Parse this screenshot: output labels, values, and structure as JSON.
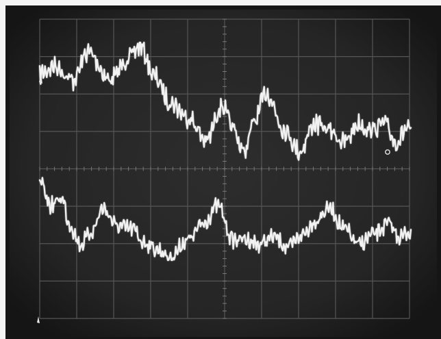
{
  "scene": {
    "subject": "oscilloscope-screen-photo",
    "colors": {
      "border": "#f4f4f4",
      "screen_outer": "#151515",
      "screen_inner": "#2d2d2d",
      "grid": "#565656",
      "trace": "#f2f2f2"
    },
    "graticule": {
      "divisions_x": 10,
      "divisions_y": 8
    },
    "traces": [
      {
        "name": "upper-trace",
        "points": [
          [
            0.0,
            0.2
          ],
          [
            0.04,
            0.15
          ],
          [
            0.09,
            0.24
          ],
          [
            0.13,
            0.06
          ],
          [
            0.19,
            0.24
          ],
          [
            0.24,
            0.1
          ],
          [
            0.27,
            0.02
          ],
          [
            0.31,
            0.22
          ],
          [
            0.35,
            0.38
          ],
          [
            0.4,
            0.48
          ],
          [
            0.45,
            0.63
          ],
          [
            0.49,
            0.4
          ],
          [
            0.52,
            0.55
          ],
          [
            0.55,
            0.7
          ],
          [
            0.58,
            0.5
          ],
          [
            0.61,
            0.32
          ],
          [
            0.66,
            0.56
          ],
          [
            0.7,
            0.7
          ],
          [
            0.74,
            0.52
          ],
          [
            0.78,
            0.56
          ],
          [
            0.82,
            0.64
          ],
          [
            0.86,
            0.52
          ],
          [
            0.89,
            0.56
          ],
          [
            0.93,
            0.52
          ],
          [
            0.96,
            0.64
          ],
          [
            0.99,
            0.55
          ],
          [
            1.0,
            0.58
          ]
        ],
        "amplitude": 0.55
      },
      {
        "name": "lower-trace",
        "points": [
          [
            0.0,
            0.4
          ],
          [
            0.03,
            0.58
          ],
          [
            0.06,
            0.52
          ],
          [
            0.08,
            0.72
          ],
          [
            0.11,
            0.88
          ],
          [
            0.14,
            0.78
          ],
          [
            0.17,
            0.6
          ],
          [
            0.21,
            0.74
          ],
          [
            0.25,
            0.76
          ],
          [
            0.28,
            0.86
          ],
          [
            0.32,
            0.92
          ],
          [
            0.35,
            0.98
          ],
          [
            0.4,
            0.84
          ],
          [
            0.44,
            0.72
          ],
          [
            0.48,
            0.58
          ],
          [
            0.52,
            0.84
          ],
          [
            0.56,
            0.84
          ],
          [
            0.59,
            0.88
          ],
          [
            0.63,
            0.82
          ],
          [
            0.67,
            0.9
          ],
          [
            0.71,
            0.8
          ],
          [
            0.74,
            0.7
          ],
          [
            0.78,
            0.6
          ],
          [
            0.82,
            0.76
          ],
          [
            0.86,
            0.88
          ],
          [
            0.9,
            0.8
          ],
          [
            0.94,
            0.72
          ],
          [
            0.97,
            0.82
          ],
          [
            1.0,
            0.78
          ]
        ],
        "amplitude": 0.45
      }
    ]
  }
}
